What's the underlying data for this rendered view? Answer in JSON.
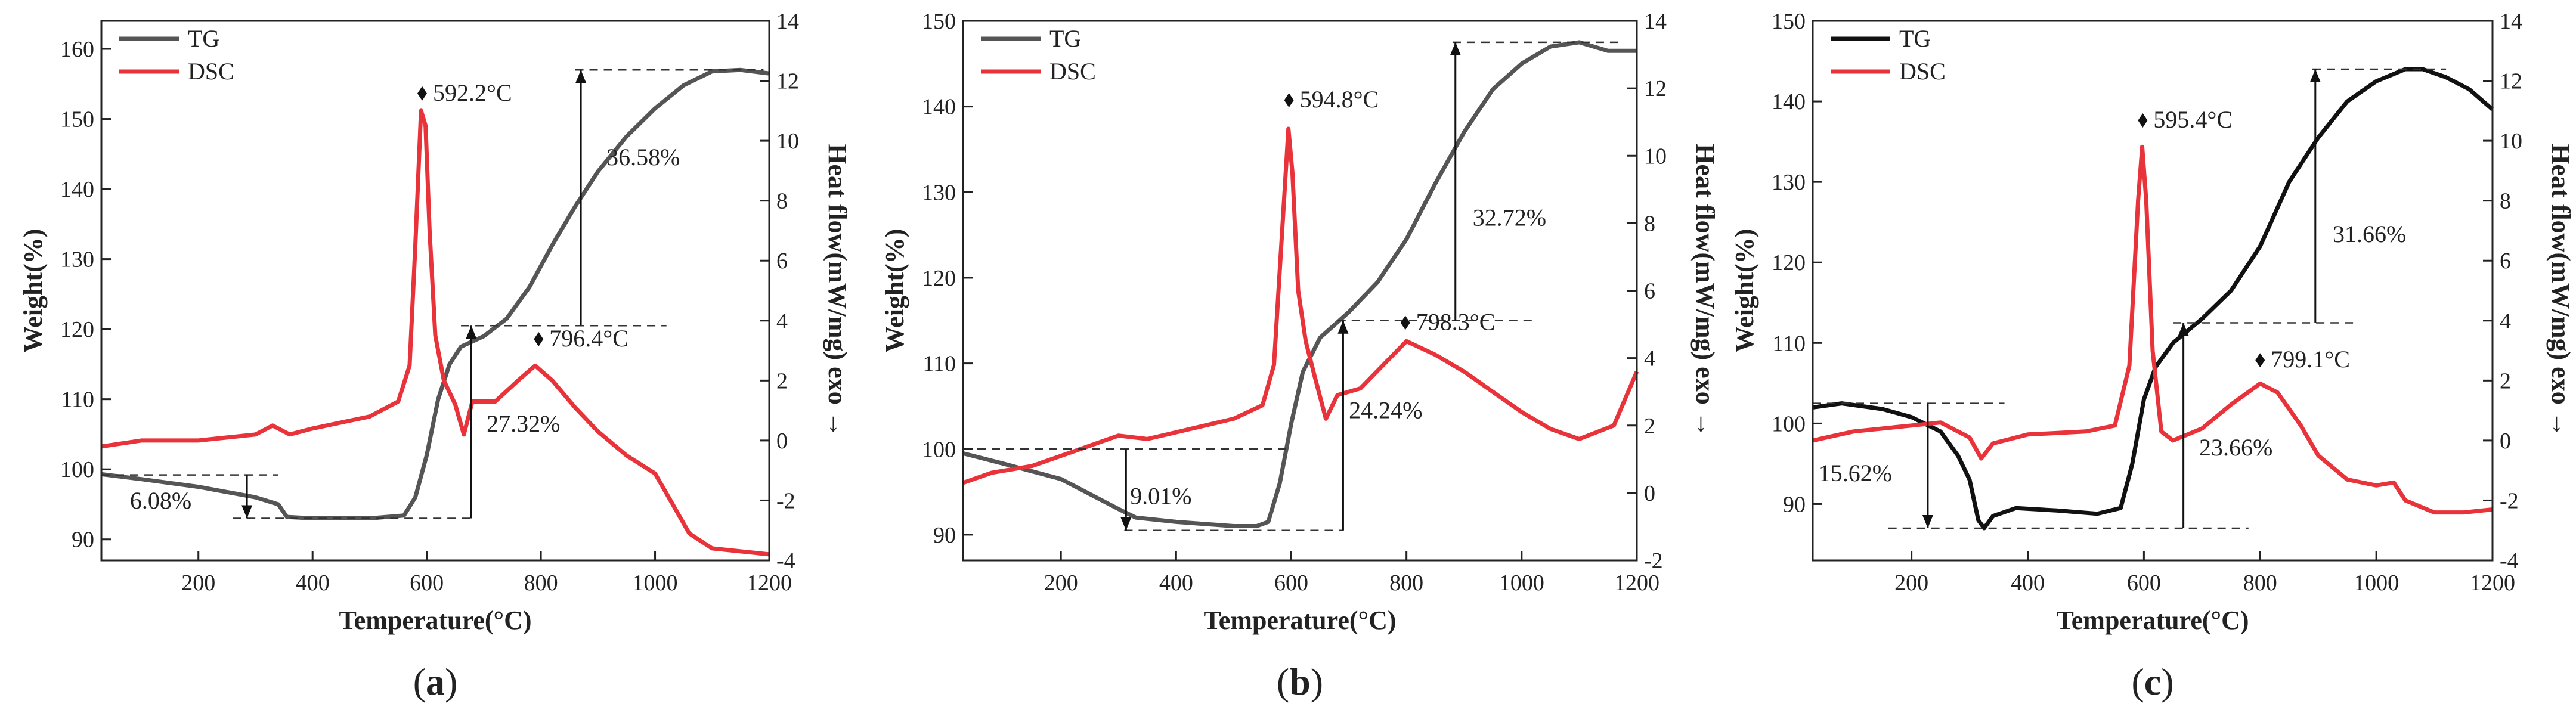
{
  "chart_data": [
    {
      "type": "line",
      "panel_label": "a",
      "xlabel": "Temperature(°C)",
      "ylabel": "Weight(%)",
      "y2label": "Heat flow(mW/mg) exo →",
      "xlim": [
        30,
        1200
      ],
      "ylim": [
        87,
        164
      ],
      "y2lim": [
        -4,
        14
      ],
      "xticks": [
        200,
        400,
        600,
        800,
        1000,
        1200
      ],
      "yticks": [
        90,
        100,
        110,
        120,
        130,
        140,
        150,
        160
      ],
      "y2ticks": [
        -4,
        -2,
        0,
        2,
        4,
        6,
        8,
        10,
        12,
        14
      ],
      "legend": [
        "TG",
        "DSC"
      ],
      "series": [
        {
          "name": "TG",
          "axis": "left",
          "color": "#555555",
          "points": [
            [
              30,
              99.3
            ],
            [
              100,
              98.6
            ],
            [
              200,
              97.5
            ],
            [
              300,
              96
            ],
            [
              340,
              95
            ],
            [
              355,
              93.2
            ],
            [
              400,
              93
            ],
            [
              500,
              93
            ],
            [
              560,
              93.4
            ],
            [
              580,
              96
            ],
            [
              600,
              102
            ],
            [
              620,
              110
            ],
            [
              640,
              115
            ],
            [
              660,
              117.5
            ],
            [
              700,
              119
            ],
            [
              740,
              121.5
            ],
            [
              780,
              126
            ],
            [
              820,
              132
            ],
            [
              860,
              137.5
            ],
            [
              900,
              142.5
            ],
            [
              950,
              147.5
            ],
            [
              1000,
              151.5
            ],
            [
              1050,
              154.8
            ],
            [
              1100,
              156.8
            ],
            [
              1150,
              157
            ],
            [
              1200,
              156.5
            ]
          ]
        },
        {
          "name": "DSC",
          "axis": "right",
          "color": "#e8333a",
          "points": [
            [
              30,
              -0.2
            ],
            [
              100,
              0
            ],
            [
              200,
              0
            ],
            [
              300,
              0.2
            ],
            [
              330,
              0.5
            ],
            [
              360,
              0.2
            ],
            [
              400,
              0.4
            ],
            [
              450,
              0.6
            ],
            [
              500,
              0.8
            ],
            [
              550,
              1.3
            ],
            [
              570,
              2.5
            ],
            [
              580,
              6.5
            ],
            [
              590,
              11
            ],
            [
              598,
              10.5
            ],
            [
              605,
              7
            ],
            [
              615,
              3.5
            ],
            [
              630,
              2
            ],
            [
              650,
              1.2
            ],
            [
              665,
              0.2
            ],
            [
              680,
              1.3
            ],
            [
              720,
              1.3
            ],
            [
              760,
              2
            ],
            [
              790,
              2.5
            ],
            [
              820,
              2
            ],
            [
              860,
              1.1
            ],
            [
              900,
              0.3
            ],
            [
              950,
              -0.5
            ],
            [
              1000,
              -1.1
            ],
            [
              1030,
              -2.1
            ],
            [
              1060,
              -3.1
            ],
            [
              1100,
              -3.6
            ],
            [
              1150,
              -3.7
            ],
            [
              1200,
              -3.8
            ]
          ]
        }
      ],
      "annotations": [
        {
          "text": "592.2°C",
          "marker": "diamond",
          "x": 592,
          "y2": 11.3
        },
        {
          "text": "796.4°C",
          "marker": "diamond",
          "x": 796,
          "y2": 3.1
        },
        {
          "text": "6.08%",
          "x": 80,
          "y": 95.5
        },
        {
          "text": "27.32%",
          "x": 705,
          "y": 106.5
        },
        {
          "text": "36.58%",
          "x": 915,
          "y": 144.5
        }
      ],
      "dashed_lines": [
        {
          "x1": 30,
          "x2": 340,
          "y": 99.2
        },
        {
          "x1": 260,
          "x2": 680,
          "y": 93
        },
        {
          "x1": 660,
          "x2": 1020,
          "y": 120.5
        },
        {
          "x1": 860,
          "x2": 1190,
          "y": 157
        }
      ],
      "arrows": [
        {
          "x": 285,
          "from": 99.2,
          "to": 93,
          "head": "down"
        },
        {
          "x": 678,
          "from": 93,
          "to": 120.5,
          "head": "up"
        },
        {
          "x": 870,
          "from": 120.5,
          "to": 157,
          "head": "up"
        }
      ]
    },
    {
      "type": "line",
      "panel_label": "b",
      "xlabel": "Temperature(°C)",
      "ylabel": "Weight(%)",
      "y2label": "Heat flow(mW/mg) exo →",
      "xlim": [
        30,
        1200
      ],
      "ylim": [
        87,
        150
      ],
      "y2lim": [
        -2,
        14
      ],
      "xticks": [
        200,
        400,
        600,
        800,
        1000,
        1200
      ],
      "yticks": [
        90,
        100,
        110,
        120,
        130,
        140,
        150
      ],
      "y2ticks": [
        -2,
        0,
        2,
        4,
        6,
        8,
        10,
        12,
        14
      ],
      "legend": [
        "TG",
        "DSC"
      ],
      "series": [
        {
          "name": "TG",
          "axis": "left",
          "color": "#555555",
          "points": [
            [
              30,
              99.5
            ],
            [
              100,
              98.3
            ],
            [
              200,
              96.5
            ],
            [
              300,
              93
            ],
            [
              330,
              92
            ],
            [
              400,
              91.5
            ],
            [
              500,
              91
            ],
            [
              540,
              91
            ],
            [
              560,
              91.5
            ],
            [
              580,
              96
            ],
            [
              600,
              103
            ],
            [
              620,
              109
            ],
            [
              650,
              113
            ],
            [
              700,
              116
            ],
            [
              750,
              119.5
            ],
            [
              800,
              124.5
            ],
            [
              850,
              131
            ],
            [
              900,
              137
            ],
            [
              950,
              142
            ],
            [
              1000,
              145
            ],
            [
              1050,
              147
            ],
            [
              1100,
              147.5
            ],
            [
              1150,
              146.5
            ],
            [
              1200,
              146.5
            ]
          ]
        },
        {
          "name": "DSC",
          "axis": "right",
          "color": "#e8333a",
          "points": [
            [
              30,
              0.3
            ],
            [
              80,
              0.6
            ],
            [
              150,
              0.8
            ],
            [
              200,
              1.1
            ],
            [
              250,
              1.4
            ],
            [
              300,
              1.7
            ],
            [
              350,
              1.6
            ],
            [
              400,
              1.8
            ],
            [
              450,
              2
            ],
            [
              500,
              2.2
            ],
            [
              550,
              2.6
            ],
            [
              570,
              3.8
            ],
            [
              585,
              8
            ],
            [
              595,
              10.8
            ],
            [
              602,
              9.5
            ],
            [
              612,
              6
            ],
            [
              625,
              4.5
            ],
            [
              640,
              3.5
            ],
            [
              660,
              2.2
            ],
            [
              680,
              2.9
            ],
            [
              720,
              3.1
            ],
            [
              760,
              3.8
            ],
            [
              800,
              4.5
            ],
            [
              850,
              4.1
            ],
            [
              900,
              3.6
            ],
            [
              950,
              3
            ],
            [
              1000,
              2.4
            ],
            [
              1050,
              1.9
            ],
            [
              1100,
              1.6
            ],
            [
              1130,
              1.8
            ],
            [
              1160,
              2
            ],
            [
              1200,
              3.6
            ]
          ]
        }
      ],
      "annotations": [
        {
          "text": "594.8°C",
          "marker": "diamond",
          "x": 596,
          "y2": 11.4
        },
        {
          "text": "798.3°C",
          "marker": "diamond",
          "x": 798,
          "y2": 4.8
        },
        {
          "text": "9.01%",
          "x": 320,
          "y": 94.5
        },
        {
          "text": "24.24%",
          "x": 700,
          "y": 104.5
        },
        {
          "text": "32.72%",
          "x": 915,
          "y": 127
        }
      ],
      "dashed_lines": [
        {
          "x1": 30,
          "x2": 600,
          "y": 100
        },
        {
          "x1": 310,
          "x2": 690,
          "y": 90.5
        },
        {
          "x1": 680,
          "x2": 1020,
          "y": 115
        },
        {
          "x1": 880,
          "x2": 1170,
          "y": 147.5
        }
      ],
      "arrows": [
        {
          "x": 313,
          "from": 100,
          "to": 90.5,
          "head": "down"
        },
        {
          "x": 690,
          "from": 90.5,
          "to": 115,
          "head": "up"
        },
        {
          "x": 885,
          "from": 115,
          "to": 147.5,
          "head": "up"
        }
      ]
    },
    {
      "type": "line",
      "panel_label": "c",
      "xlabel": "Temperature(°C)",
      "ylabel": "Weight(%)",
      "y2label": "Heat flow(mW/mg) exo →",
      "xlim": [
        30,
        1200
      ],
      "ylim": [
        83,
        150
      ],
      "y2lim": [
        -4,
        14
      ],
      "xticks": [
        200,
        400,
        600,
        800,
        1000,
        1200
      ],
      "yticks": [
        90,
        100,
        110,
        120,
        130,
        140,
        150
      ],
      "y2ticks": [
        -4,
        -2,
        0,
        2,
        4,
        6,
        8,
        10,
        12,
        14
      ],
      "legend": [
        "TG",
        "DSC"
      ],
      "series": [
        {
          "name": "TG",
          "axis": "left",
          "color": "#111111",
          "points": [
            [
              30,
              102
            ],
            [
              80,
              102.5
            ],
            [
              150,
              101.8
            ],
            [
              200,
              100.8
            ],
            [
              250,
              99
            ],
            [
              280,
              96
            ],
            [
              300,
              93
            ],
            [
              315,
              88
            ],
            [
              325,
              87
            ],
            [
              340,
              88.5
            ],
            [
              380,
              89.5
            ],
            [
              450,
              89.2
            ],
            [
              520,
              88.8
            ],
            [
              560,
              89.5
            ],
            [
              580,
              95
            ],
            [
              600,
              103
            ],
            [
              620,
              107
            ],
            [
              650,
              110
            ],
            [
              700,
              113
            ],
            [
              750,
              116.5
            ],
            [
              800,
              122
            ],
            [
              850,
              130
            ],
            [
              900,
              135.5
            ],
            [
              950,
              140
            ],
            [
              1000,
              142.5
            ],
            [
              1050,
              144
            ],
            [
              1080,
              144
            ],
            [
              1120,
              143
            ],
            [
              1160,
              141.5
            ],
            [
              1200,
              139
            ]
          ]
        },
        {
          "name": "DSC",
          "axis": "right",
          "color": "#e8333a",
          "points": [
            [
              30,
              0
            ],
            [
              100,
              0.3
            ],
            [
              200,
              0.5
            ],
            [
              250,
              0.6
            ],
            [
              300,
              0.1
            ],
            [
              320,
              -0.6
            ],
            [
              340,
              -0.1
            ],
            [
              400,
              0.2
            ],
            [
              500,
              0.3
            ],
            [
              550,
              0.5
            ],
            [
              575,
              2.5
            ],
            [
              590,
              8
            ],
            [
              597,
              9.8
            ],
            [
              604,
              8
            ],
            [
              615,
              3
            ],
            [
              630,
              0.3
            ],
            [
              650,
              0
            ],
            [
              700,
              0.4
            ],
            [
              750,
              1.2
            ],
            [
              800,
              1.9
            ],
            [
              830,
              1.6
            ],
            [
              870,
              0.5
            ],
            [
              900,
              -0.5
            ],
            [
              950,
              -1.3
            ],
            [
              1000,
              -1.5
            ],
            [
              1030,
              -1.4
            ],
            [
              1050,
              -2
            ],
            [
              1100,
              -2.4
            ],
            [
              1150,
              -2.4
            ],
            [
              1200,
              -2.3
            ]
          ]
        }
      ],
      "annotations": [
        {
          "text": "595.4°C",
          "marker": "diamond",
          "x": 598,
          "y2": 10.4
        },
        {
          "text": "799.1°C",
          "marker": "diamond",
          "x": 800,
          "y2": 2.4
        },
        {
          "text": "15.62%",
          "x": 40,
          "y": 93.8
        },
        {
          "text": "23.66%",
          "x": 695,
          "y": 97
        },
        {
          "text": "31.66%",
          "x": 925,
          "y": 123.5
        }
      ],
      "dashed_lines": [
        {
          "x1": 30,
          "x2": 360,
          "y": 102.5
        },
        {
          "x1": 160,
          "x2": 780,
          "y": 87
        },
        {
          "x1": 650,
          "x2": 960,
          "y": 112.5
        },
        {
          "x1": 890,
          "x2": 1120,
          "y": 144
        }
      ],
      "arrows": [
        {
          "x": 228,
          "from": 102.5,
          "to": 87,
          "head": "down"
        },
        {
          "x": 668,
          "from": 87,
          "to": 112.5,
          "head": "up"
        },
        {
          "x": 895,
          "from": 112.5,
          "to": 144,
          "head": "up"
        }
      ]
    }
  ]
}
